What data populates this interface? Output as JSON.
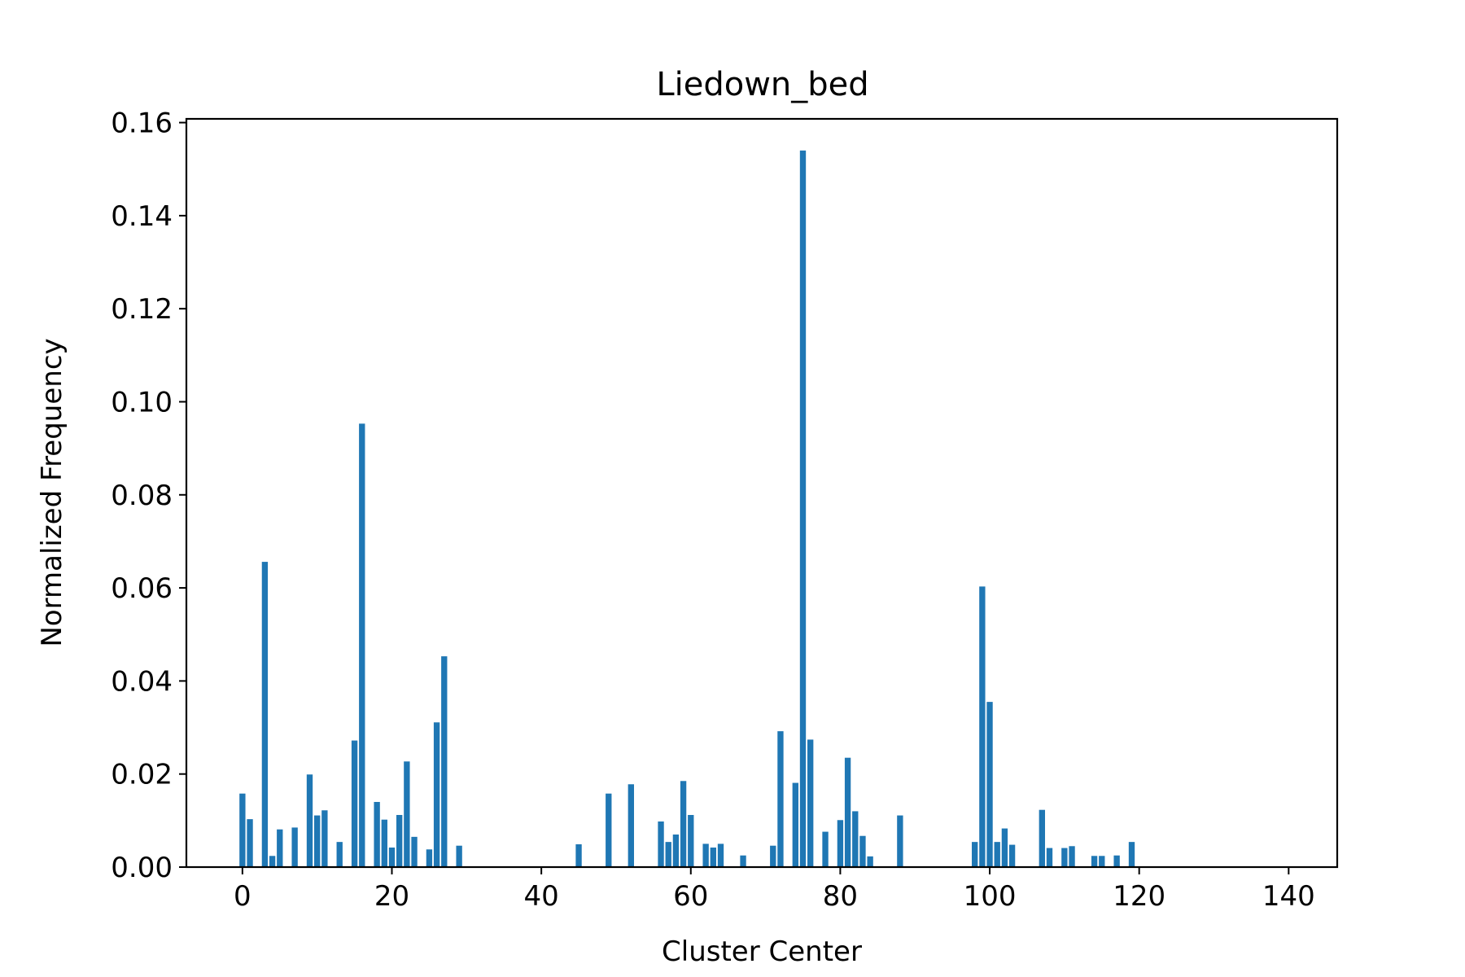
{
  "chart_data": {
    "type": "bar",
    "title": "Liedown_bed",
    "xlabel": "Cluster Center",
    "ylabel": "Normalized Frequency",
    "xlim": [
      -7.5,
      146.5
    ],
    "ylim": [
      0,
      0.1608
    ],
    "xticks": [
      0,
      20,
      40,
      60,
      80,
      100,
      120,
      140
    ],
    "xtick_labels": [
      "0",
      "20",
      "40",
      "60",
      "80",
      "100",
      "120",
      "140"
    ],
    "yticks": [
      0,
      0.02,
      0.04,
      0.06,
      0.08,
      0.1,
      0.12,
      0.14,
      0.16
    ],
    "ytick_labels": [
      "0.00",
      "0.02",
      "0.04",
      "0.06",
      "0.08",
      "0.10",
      "0.12",
      "0.14",
      "0.16"
    ],
    "grid": false,
    "bar_color": "#1f77b4",
    "x": [
      0,
      1,
      3,
      4,
      5,
      7,
      9,
      10,
      11,
      13,
      15,
      16,
      18,
      19,
      20,
      21,
      22,
      23,
      25,
      26,
      27,
      29,
      45,
      49,
      52,
      56,
      57,
      58,
      59,
      60,
      62,
      63,
      64,
      67,
      71,
      72,
      74,
      75,
      76,
      78,
      80,
      81,
      82,
      83,
      84,
      88,
      98,
      99,
      100,
      101,
      102,
      103,
      107,
      108,
      110,
      111,
      114,
      115,
      117,
      119
    ],
    "values": [
      0.0158,
      0.0103,
      0.0656,
      0.0024,
      0.0081,
      0.0085,
      0.0199,
      0.0111,
      0.0122,
      0.0054,
      0.0272,
      0.0953,
      0.014,
      0.0102,
      0.0042,
      0.0112,
      0.0227,
      0.0065,
      0.0038,
      0.0311,
      0.0453,
      0.0046,
      0.0049,
      0.0158,
      0.0178,
      0.0098,
      0.0054,
      0.007,
      0.0185,
      0.0112,
      0.005,
      0.0042,
      0.005,
      0.0025,
      0.0046,
      0.0292,
      0.0181,
      0.154,
      0.0274,
      0.0076,
      0.0101,
      0.0235,
      0.012,
      0.0067,
      0.0023,
      0.0111,
      0.0054,
      0.0603,
      0.0355,
      0.0054,
      0.0083,
      0.0048,
      0.0123,
      0.0041,
      0.0041,
      0.0045,
      0.0024,
      0.0024,
      0.0025,
      0.0054
    ]
  }
}
